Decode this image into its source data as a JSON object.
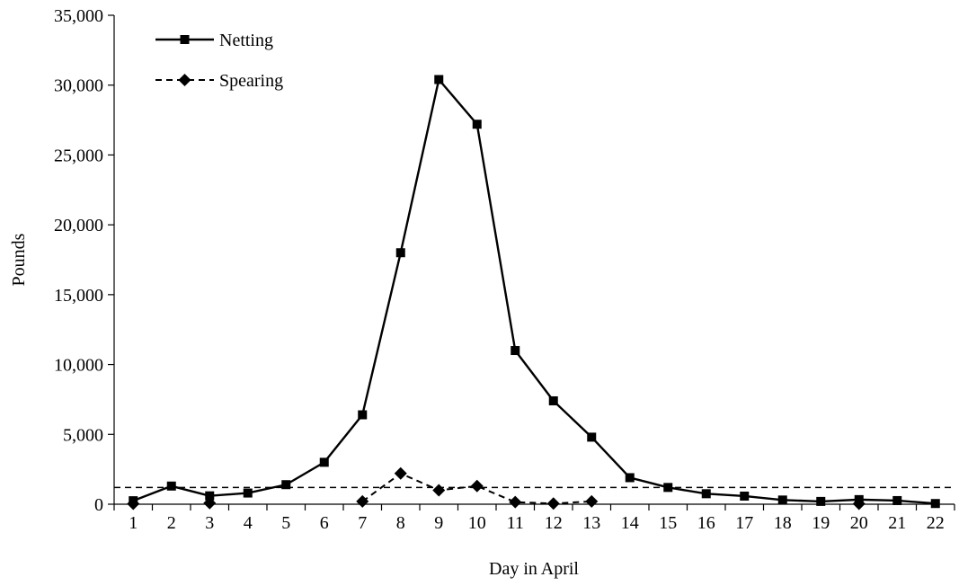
{
  "chart_data": {
    "type": "line",
    "title": "",
    "xlabel": "Day in April",
    "ylabel": "Pounds",
    "x": [
      1,
      2,
      3,
      4,
      5,
      6,
      7,
      8,
      9,
      10,
      11,
      12,
      13,
      14,
      15,
      16,
      17,
      18,
      19,
      20,
      21,
      22
    ],
    "x_tick_labels": [
      "1",
      "2",
      "3",
      "4",
      "5",
      "6",
      "7",
      "8",
      "9",
      "10",
      "11",
      "12",
      "13",
      "14",
      "15",
      "16",
      "17",
      "18",
      "19",
      "20",
      "21",
      "22"
    ],
    "ylim": [
      0,
      35000
    ],
    "y_ticks": [
      0,
      5000,
      10000,
      15000,
      20000,
      25000,
      30000,
      35000
    ],
    "y_tick_labels": [
      "0",
      "5,000",
      "10,000",
      "15,000",
      "20,000",
      "25,000",
      "30,000",
      "35,000"
    ],
    "grid": false,
    "legend_position": "top-left",
    "series": [
      {
        "name": "Netting",
        "line_style": "solid",
        "marker": "square",
        "color": "#000000",
        "values": [
          250,
          1300,
          600,
          800,
          1400,
          3000,
          6400,
          18000,
          30400,
          27200,
          11000,
          7400,
          4800,
          1900,
          1200,
          750,
          580,
          300,
          200,
          330,
          260,
          50
        ]
      },
      {
        "name": "Spearing",
        "line_style": "dashed",
        "marker": "diamond",
        "color": "#000000",
        "segments": [
          {
            "x": [
              1
            ],
            "values": [
              30
            ]
          },
          {
            "x": [
              3
            ],
            "values": [
              80
            ]
          },
          {
            "x": [
              7,
              8,
              9,
              10,
              11,
              12,
              13
            ],
            "values": [
              200,
              2200,
              1000,
              1300,
              150,
              50,
              200
            ]
          },
          {
            "x": [
              20
            ],
            "values": [
              30
            ]
          }
        ]
      }
    ],
    "reference_line": {
      "style": "dashed",
      "value": 1200
    }
  }
}
